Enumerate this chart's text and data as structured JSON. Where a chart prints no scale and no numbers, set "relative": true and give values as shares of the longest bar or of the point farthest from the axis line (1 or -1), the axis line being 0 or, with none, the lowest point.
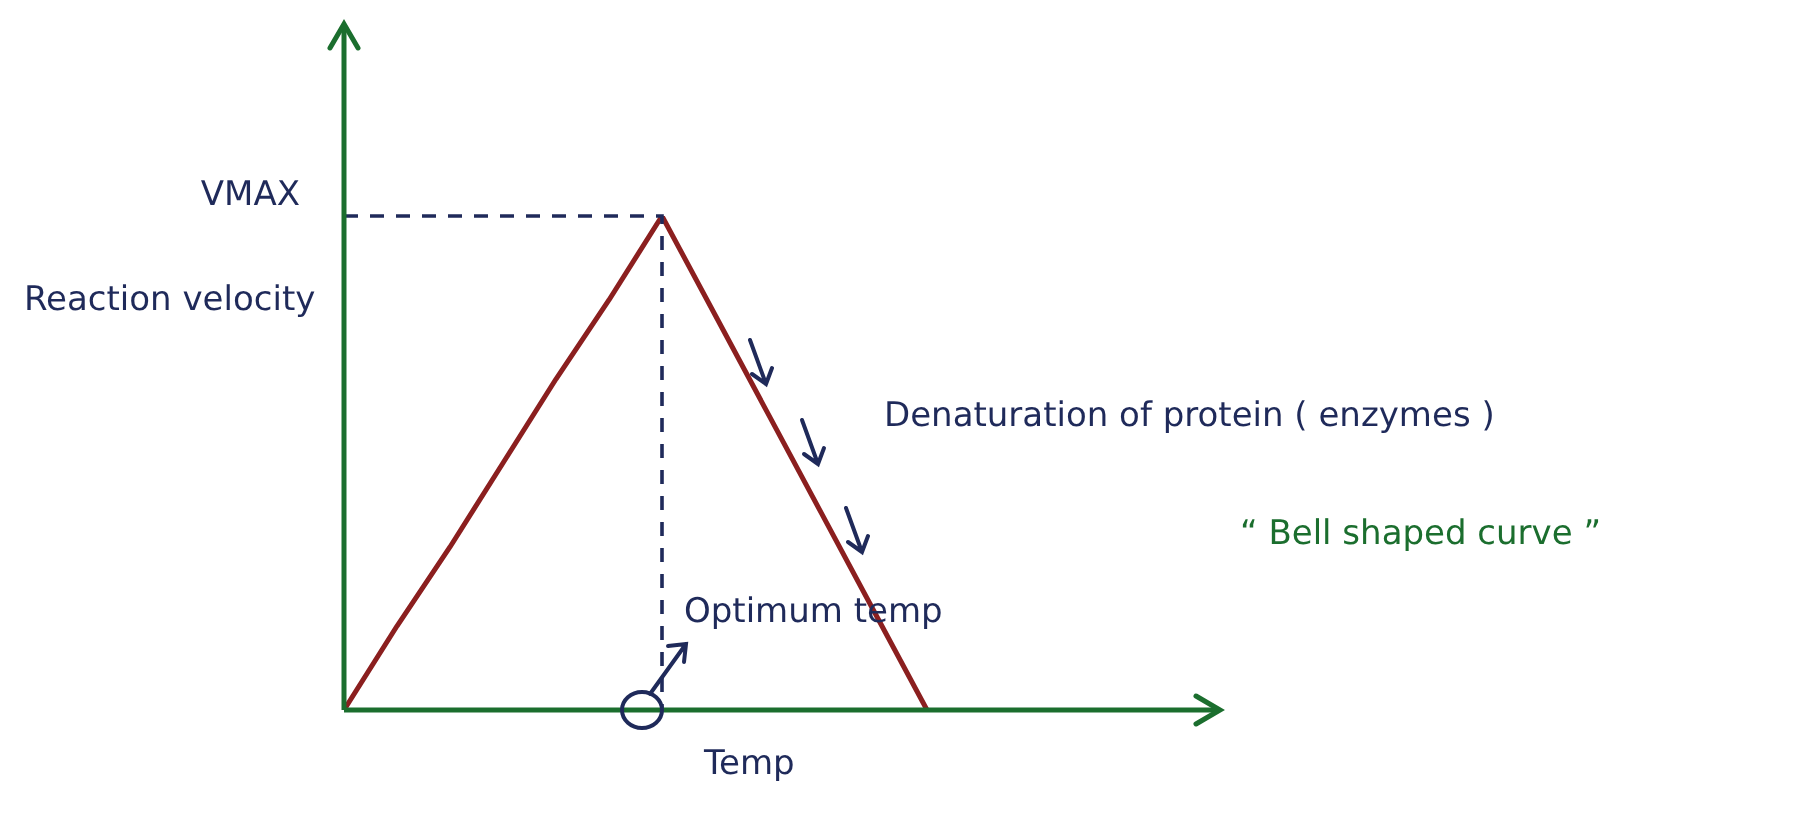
{
  "chart_data": {
    "type": "line",
    "relative": true,
    "categories": [
      null,
      null,
      null,
      null,
      null,
      null,
      null,
      null,
      null,
      null,
      null,
      null,
      null,
      null,
      null,
      null,
      null
    ],
    "series": [
      {
        "color": "#8b1f1f",
        "values": [
          0,
          0.17,
          0.33,
          0.5,
          0.67,
          0.83,
          1,
          0.8,
          0.6,
          0.4,
          0.2,
          0,
          null,
          null,
          null,
          null,
          null
        ]
      }
    ],
    "xlabel": "Temp",
    "ylabel": "Reaction velocity",
    "ref_lines": [
      {
        "axis": "y",
        "value": 1,
        "label": "VMAX",
        "color": "#1f2a5a",
        "line_style": "dashed"
      }
    ],
    "annotations": [
      {
        "text": "Optimum temp"
      },
      {
        "text": "Denaturation of protein ( enzymes )"
      },
      {
        "text": "“ Bell shaped curve ”"
      }
    ],
    "legend": false,
    "tick_labels": false,
    "marker": "none",
    "line_style": "solid"
  }
}
